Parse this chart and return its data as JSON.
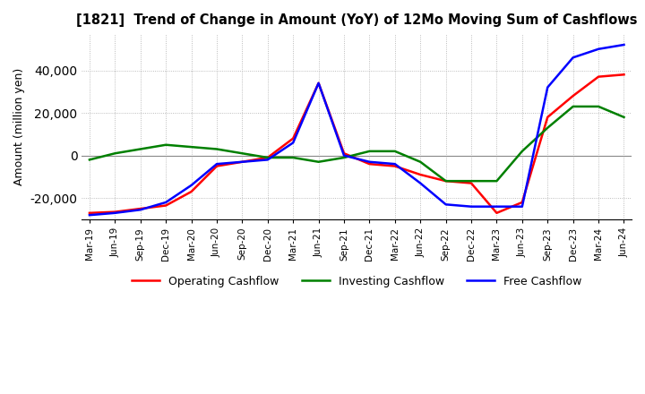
{
  "title": "[1821]  Trend of Change in Amount (YoY) of 12Mo Moving Sum of Cashflows",
  "ylabel": "Amount (million yen)",
  "x_labels": [
    "Mar-19",
    "Jun-19",
    "Sep-19",
    "Dec-19",
    "Mar-20",
    "Jun-20",
    "Sep-20",
    "Dec-20",
    "Mar-21",
    "Jun-21",
    "Sep-21",
    "Dec-21",
    "Mar-22",
    "Jun-22",
    "Sep-22",
    "Dec-22",
    "Mar-23",
    "Jun-23",
    "Sep-23",
    "Dec-23",
    "Mar-24",
    "Jun-24"
  ],
  "operating": [
    -27000,
    -26500,
    -25000,
    -23500,
    -17000,
    -5000,
    -3000,
    -1000,
    8000,
    34000,
    1000,
    -4000,
    -5000,
    -9000,
    -12000,
    -13000,
    -27000,
    -22000,
    18000,
    28000,
    37000,
    38000
  ],
  "investing": [
    -2000,
    1000,
    3000,
    5000,
    4000,
    3000,
    1000,
    -1000,
    -1000,
    -3000,
    -1000,
    2000,
    2000,
    -3000,
    -12000,
    -12000,
    -12000,
    2000,
    13000,
    23000,
    23000,
    18000
  ],
  "free": [
    -28000,
    -27000,
    -25500,
    -22000,
    -14000,
    -4000,
    -3000,
    -2000,
    6000,
    34000,
    0,
    -3000,
    -4000,
    -13000,
    -23000,
    -24000,
    -24000,
    -24000,
    32000,
    46000,
    50000,
    52000
  ],
  "operating_color": "#ff0000",
  "investing_color": "#008000",
  "free_color": "#0000ff",
  "ylim": [
    -30000,
    57000
  ],
  "yticks": [
    -20000,
    0,
    20000,
    40000
  ],
  "background_color": "#ffffff",
  "grid_color": "#aaaaaa"
}
